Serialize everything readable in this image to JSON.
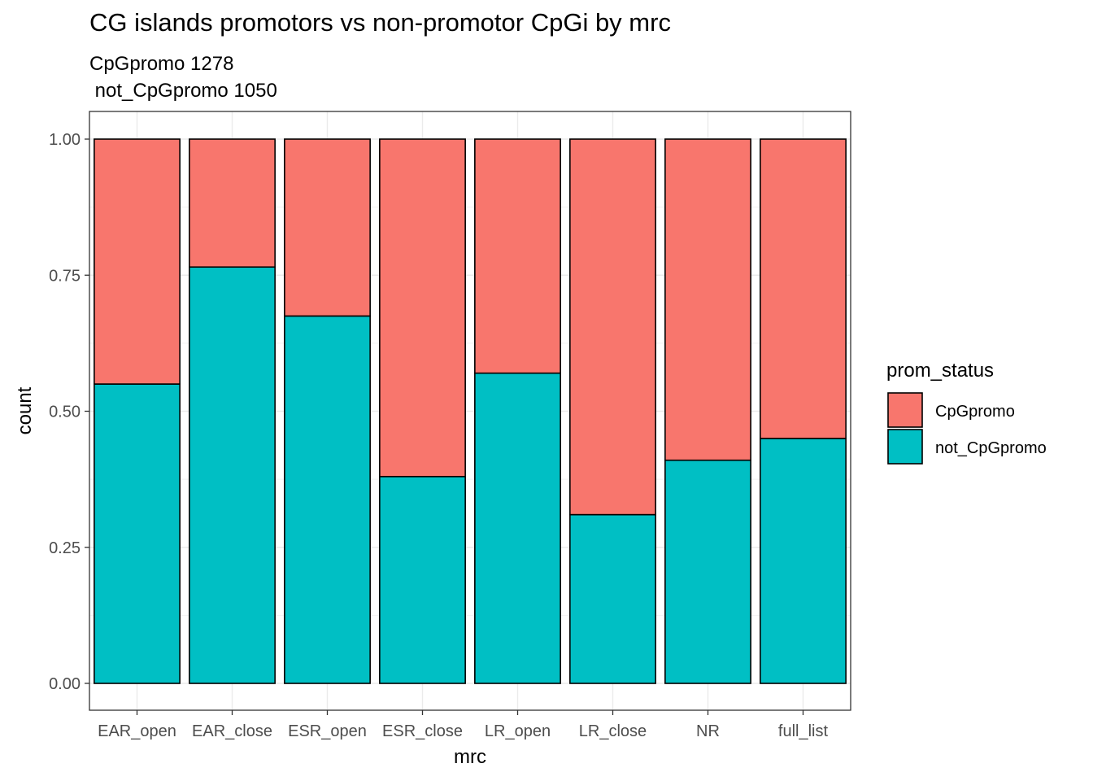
{
  "chart_data": {
    "type": "bar",
    "stacked": "fill",
    "title": "CG islands promotors vs non-promotor CpGi by mrc",
    "subtitle_lines": [
      "CpGpromo 1278",
      " not_CpGpromo 1050"
    ],
    "xlabel": "mrc",
    "ylabel": "count",
    "ylim": [
      0,
      1
    ],
    "yticks": [
      "0.00",
      "0.25",
      "0.50",
      "0.75",
      "1.00"
    ],
    "grid": true,
    "legend_position": "right",
    "legend_title": "prom_status",
    "categories": [
      "EAR_open",
      "EAR_close",
      "ESR_open",
      "ESR_close",
      "LR_open",
      "LR_close",
      "NR",
      "full_list"
    ],
    "series": [
      {
        "name": "CpGpromo",
        "color": "#F8766D",
        "values": [
          0.45,
          0.235,
          0.325,
          0.62,
          0.43,
          0.69,
          0.59,
          0.55
        ]
      },
      {
        "name": "not_CpGpromo",
        "color": "#00BFC4",
        "values": [
          0.55,
          0.765,
          0.675,
          0.38,
          0.57,
          0.31,
          0.41,
          0.45
        ]
      }
    ]
  }
}
